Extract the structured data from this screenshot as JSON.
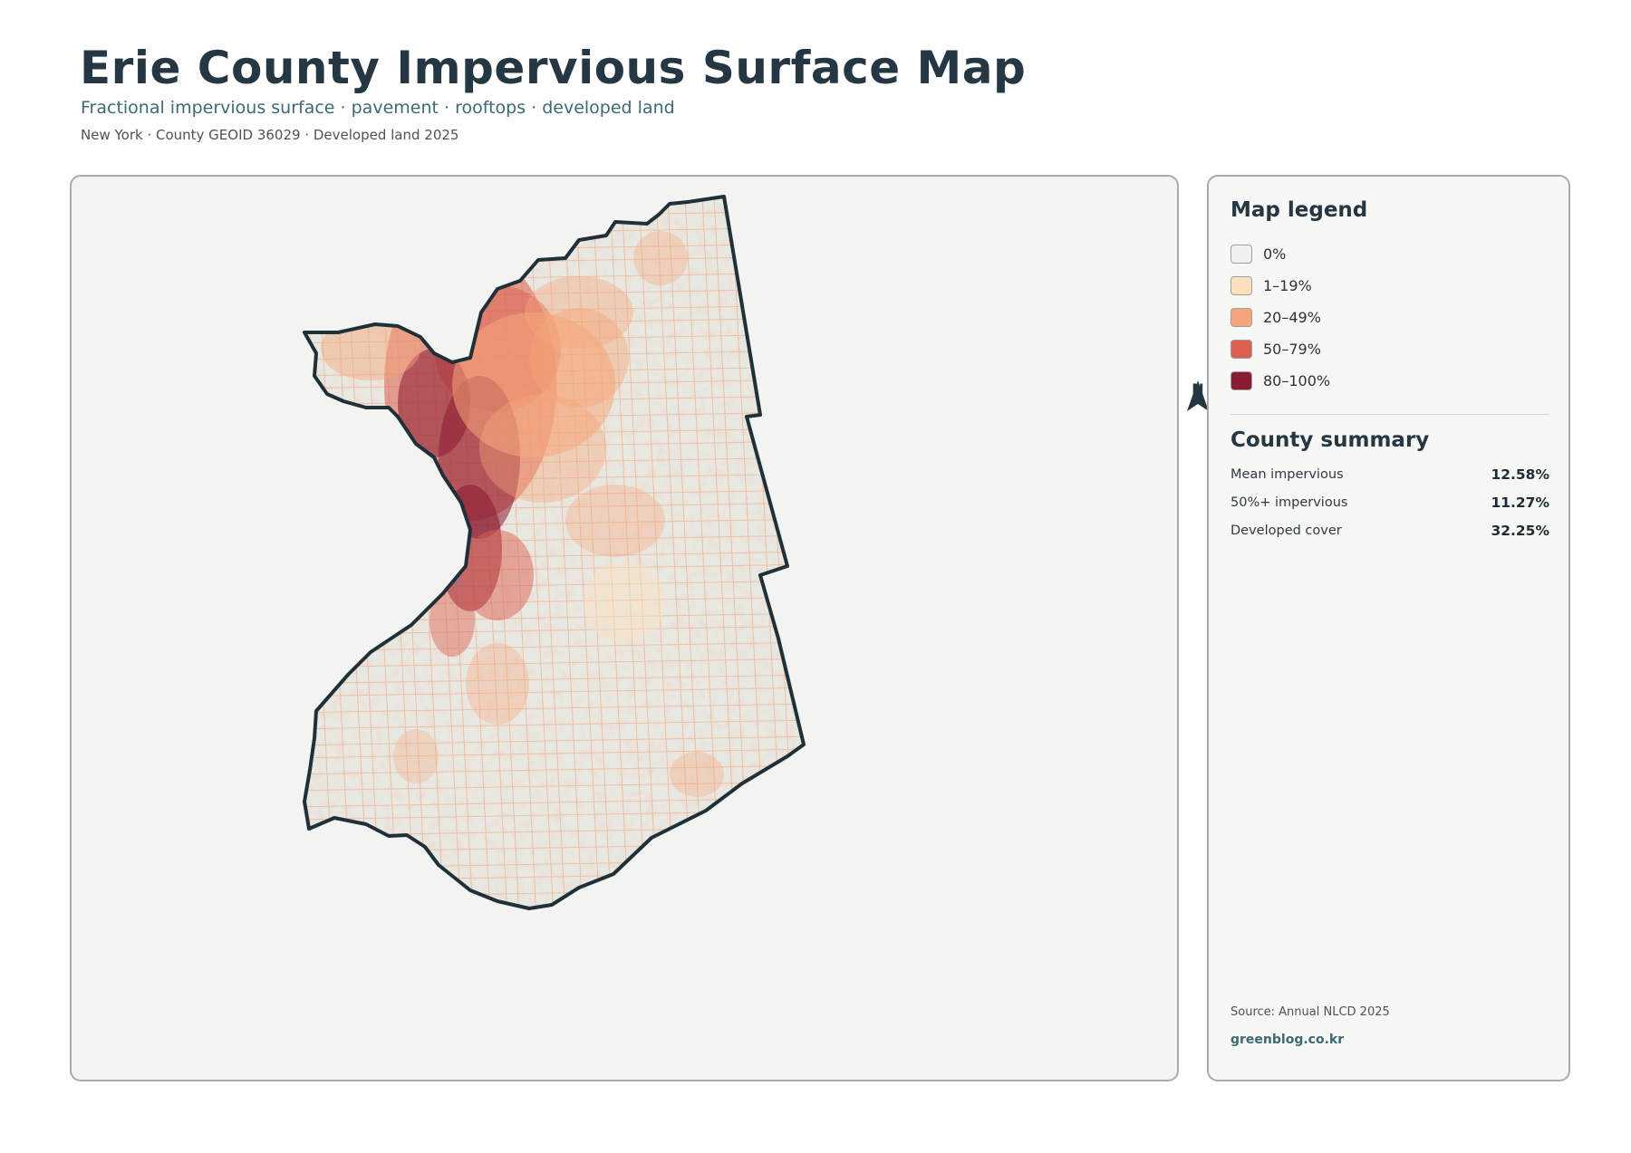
{
  "header": {
    "title": "Erie County Impervious Surface Map",
    "subtitle": "Fractional impervious surface · pavement · rooftops · developed land",
    "meta": "New York · County GEOID 36029 · Developed land 2025"
  },
  "map": {
    "north_label": "N",
    "fill_base": "#e8e8e2",
    "outline_color": "#1f3038"
  },
  "legend": {
    "title": "Map legend",
    "items": [
      {
        "label": "0%",
        "color": "#f0f0ec"
      },
      {
        "label": "1–19%",
        "color": "#fde1bd"
      },
      {
        "label": "20–49%",
        "color": "#f5a77b"
      },
      {
        "label": "50–79%",
        "color": "#dd5f4f"
      },
      {
        "label": "80–100%",
        "color": "#8c1c32"
      }
    ]
  },
  "summary": {
    "title": "County summary",
    "rows": [
      {
        "label": "Mean impervious",
        "value": "12.58%"
      },
      {
        "label": "50%+ impervious",
        "value": "11.27%"
      },
      {
        "label": "Developed cover",
        "value": "32.25%"
      }
    ]
  },
  "footer": {
    "source": "Source: Annual NLCD 2025",
    "brand": "greenblog.co.kr"
  }
}
